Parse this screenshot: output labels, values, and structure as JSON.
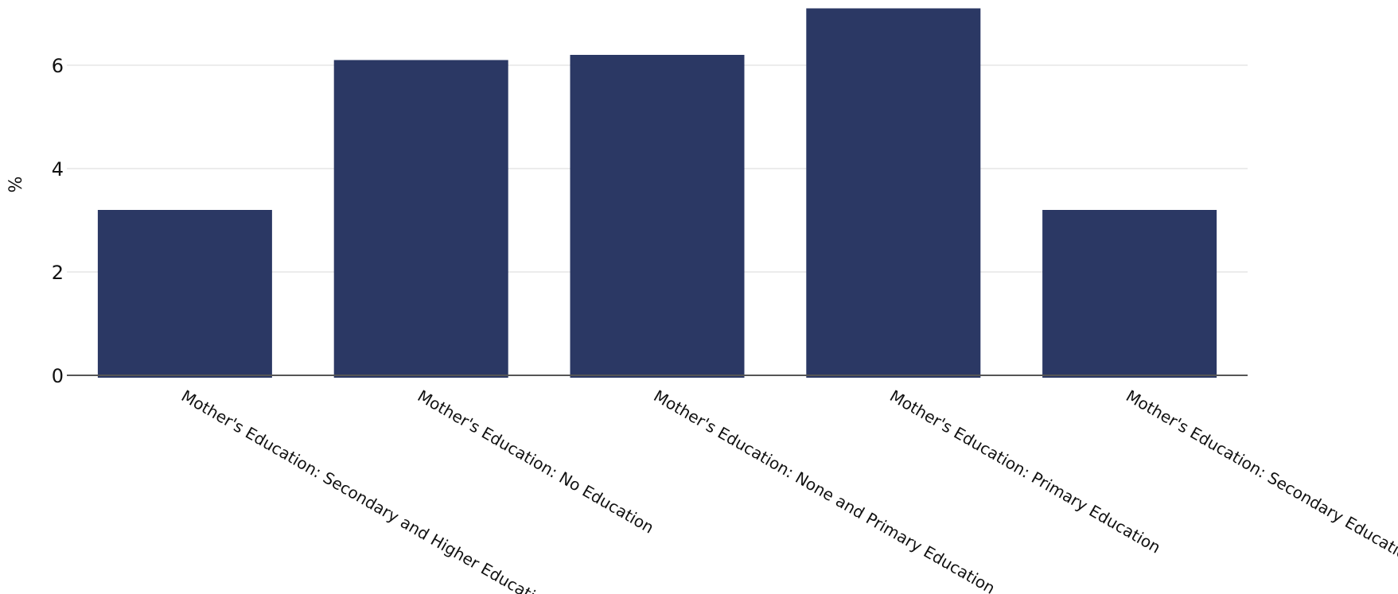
{
  "chart_data": {
    "type": "bar",
    "categories": [
      "Mother's Education: Secondary and Higher Education",
      "Mother's Education: No Education",
      "Mother's Education: None and Primary Education",
      "Mother's Education: Primary Education",
      "Mother's Education: Secondary Education"
    ],
    "values": [
      3.2,
      6.1,
      6.2,
      7.1,
      3.2
    ],
    "title": "",
    "xlabel": "",
    "ylabel": "%",
    "ylim": [
      0,
      7.1
    ],
    "yticks": [
      0,
      2,
      4,
      6
    ],
    "grid": true,
    "legend": "none",
    "bar_color": "#2b3864"
  }
}
